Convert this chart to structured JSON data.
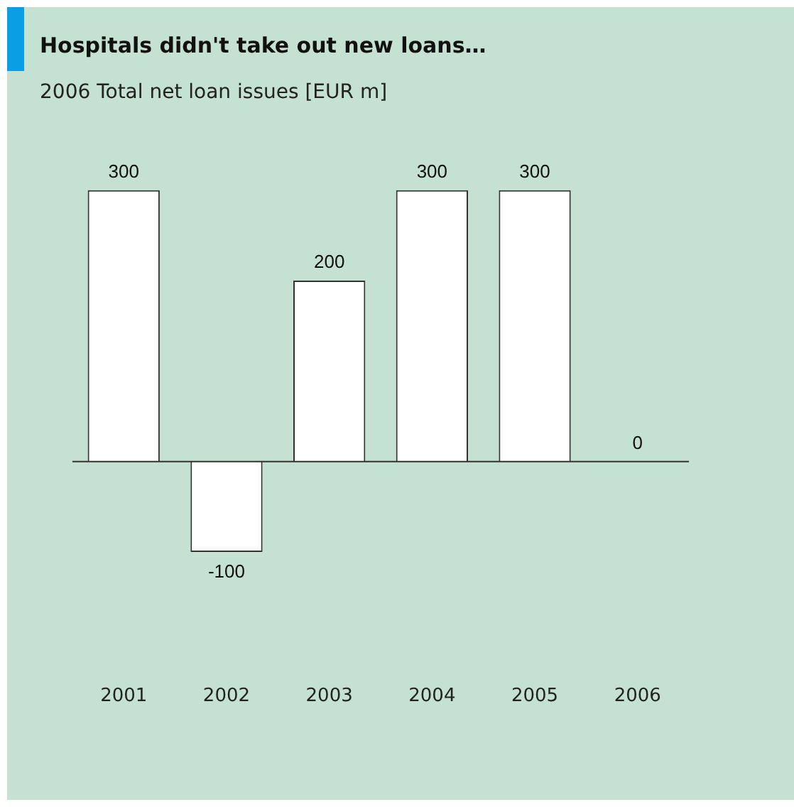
{
  "chart_data": {
    "type": "bar",
    "title": "Hospitals didn't take out new loans…",
    "subtitle": "2006 Total net loan issues [EUR m]",
    "categories": [
      "2001",
      "2002",
      "2003",
      "2004",
      "2005",
      "2006"
    ],
    "values": [
      300,
      -100,
      200,
      300,
      300,
      0
    ],
    "color": "#ffffff",
    "data_labels": true,
    "grid": false,
    "legend": false
  }
}
